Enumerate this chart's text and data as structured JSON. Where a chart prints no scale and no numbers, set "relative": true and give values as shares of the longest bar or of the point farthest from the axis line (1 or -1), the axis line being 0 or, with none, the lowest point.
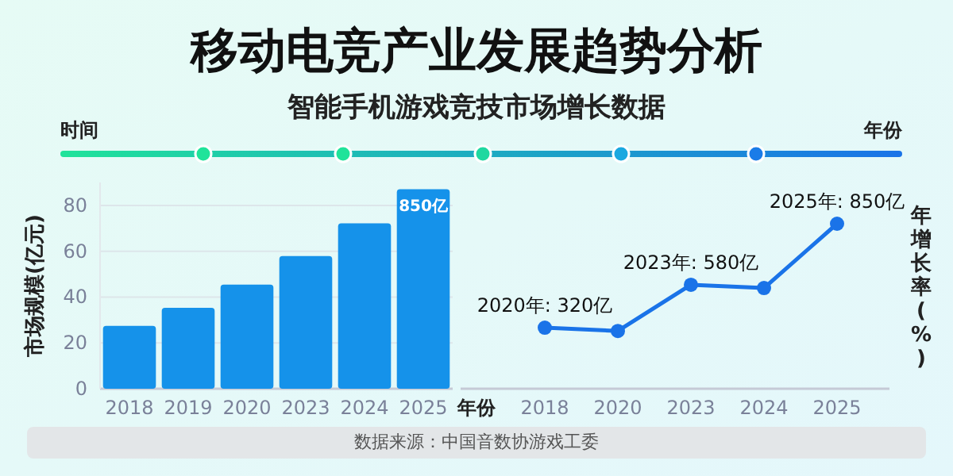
{
  "chart_data": [
    {
      "type": "bar",
      "title": "移动电竞产业发展趋势分析",
      "subtitle": "智能手机游戏竞技市场增长数据",
      "ylabel": "市场规模(亿元)",
      "xlabel": "年份",
      "categories": [
        "2018",
        "2019",
        "2020",
        "2023",
        "2024",
        "2025"
      ],
      "values": [
        27.4,
        35.3,
        45.4,
        57.9,
        72.2,
        87.1
      ],
      "color": "#1592ea",
      "ylim": [
        0,
        90
      ],
      "yticks": [
        0,
        20,
        40,
        60,
        80
      ],
      "grid": "y",
      "annotations": [
        "时间",
        "年份",
        "数据来源：中国音数协游戏工委",
        {
          "text": "850亿",
          "x": "2025",
          "y": 87.1
        }
      ]
    },
    {
      "type": "line",
      "ylabel": "年增长率(%)",
      "relative": true,
      "categories": [
        "2018",
        "2020",
        "2023",
        "2024",
        "2025"
      ],
      "series": [
        {
          "color": "#1a73e8",
          "values": [
            0.37,
            0.35,
            0.63,
            0.61,
            1
          ]
        }
      ],
      "marker": "circle",
      "annotations": [
        {
          "text": "2020年: 320亿",
          "x": "2018",
          "y": 0.37
        },
        {
          "text": "2023年: 580亿",
          "x": "2023",
          "y": 0.63
        },
        {
          "text": "2025年: 850亿",
          "x": "2025",
          "y": 1
        }
      ]
    }
  ]
}
